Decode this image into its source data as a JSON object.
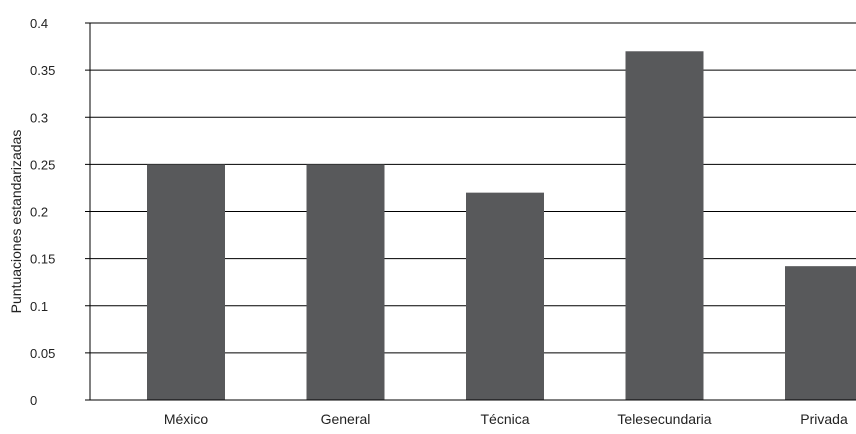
{
  "chart_data": {
    "type": "bar",
    "title": "",
    "xlabel": "",
    "ylabel": "Puntuaciones estandarizadas",
    "categories": [
      "México",
      "General",
      "Técnica",
      "Telesecundaria",
      "Privada"
    ],
    "values": [
      0.25,
      0.25,
      0.22,
      0.37,
      0.142
    ],
    "ylim": [
      0,
      0.4
    ],
    "yticks": [
      0,
      0.05,
      0.1,
      0.15,
      0.2,
      0.25,
      0.3,
      0.35,
      0.4
    ],
    "ytick_labels": [
      "0",
      "0.05",
      "0.1",
      "0.15",
      "0.2",
      "0.25",
      "0.3",
      "0.35",
      "0.4"
    ],
    "grid": true,
    "bar_color": "#58595b",
    "grid_color": "#000000"
  }
}
